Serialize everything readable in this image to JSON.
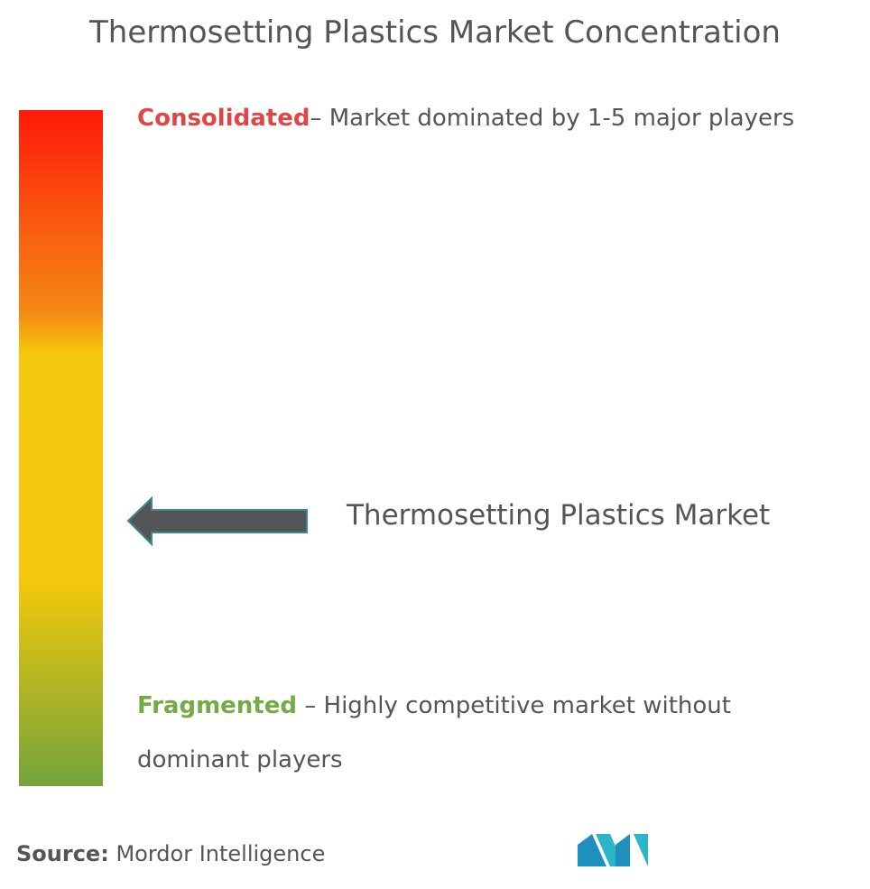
{
  "header": {
    "title": "Thermosetting Plastics Market Concentration"
  },
  "scale": {
    "consolidated": {
      "label": "Consolidated",
      "description": "– Market dominated by 1-5 major players"
    },
    "fragmented": {
      "label": "Fragmented",
      "description": "– Highly competitive market without dominant players"
    },
    "marker": {
      "label": "Thermosetting Plastics Market"
    }
  },
  "footer": {
    "source_label": "Source:",
    "source": "Mordor Intelligence"
  }
}
